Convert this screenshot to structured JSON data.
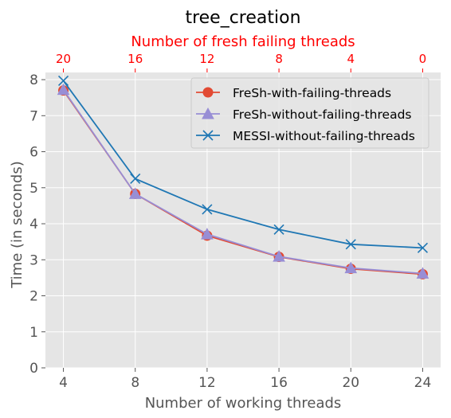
{
  "chart_data": {
    "type": "line",
    "title": "tree_creation",
    "xlabel": "Number of working threads",
    "ylabel": "Time (in seconds)",
    "x2label": "Number of fresh failing threads",
    "x": [
      4,
      8,
      12,
      16,
      20,
      24
    ],
    "x_ticks": [
      "4",
      "8",
      "12",
      "16",
      "20",
      "24"
    ],
    "x2_ticks": [
      "20",
      "16",
      "12",
      "8",
      "4",
      "0"
    ],
    "y_ticks": [
      "0",
      "1",
      "2",
      "3",
      "4",
      "5",
      "6",
      "7",
      "8"
    ],
    "xlim": [
      3,
      25
    ],
    "ylim": [
      0,
      8.2
    ],
    "grid": true,
    "legend_position": "top-right",
    "series": [
      {
        "name": "FreSh-with-failing-threads",
        "values": [
          7.7,
          4.83,
          3.67,
          3.08,
          2.75,
          2.6
        ],
        "color": "#e24a33",
        "marker": "circle"
      },
      {
        "name": "FreSh-without-failing-threads",
        "values": [
          7.72,
          4.83,
          3.71,
          3.09,
          2.77,
          2.62
        ],
        "color": "#988ed5",
        "marker": "triangle"
      },
      {
        "name": "MESSI-without-failing-threads",
        "values": [
          7.97,
          5.25,
          4.4,
          3.84,
          3.43,
          3.33
        ],
        "color": "#1f77b4",
        "marker": "x"
      }
    ],
    "colors": {
      "plot_bg": "#e5e5e5",
      "grid": "#ffffff",
      "top_axis": "#ff0000",
      "text": "#555555"
    }
  }
}
